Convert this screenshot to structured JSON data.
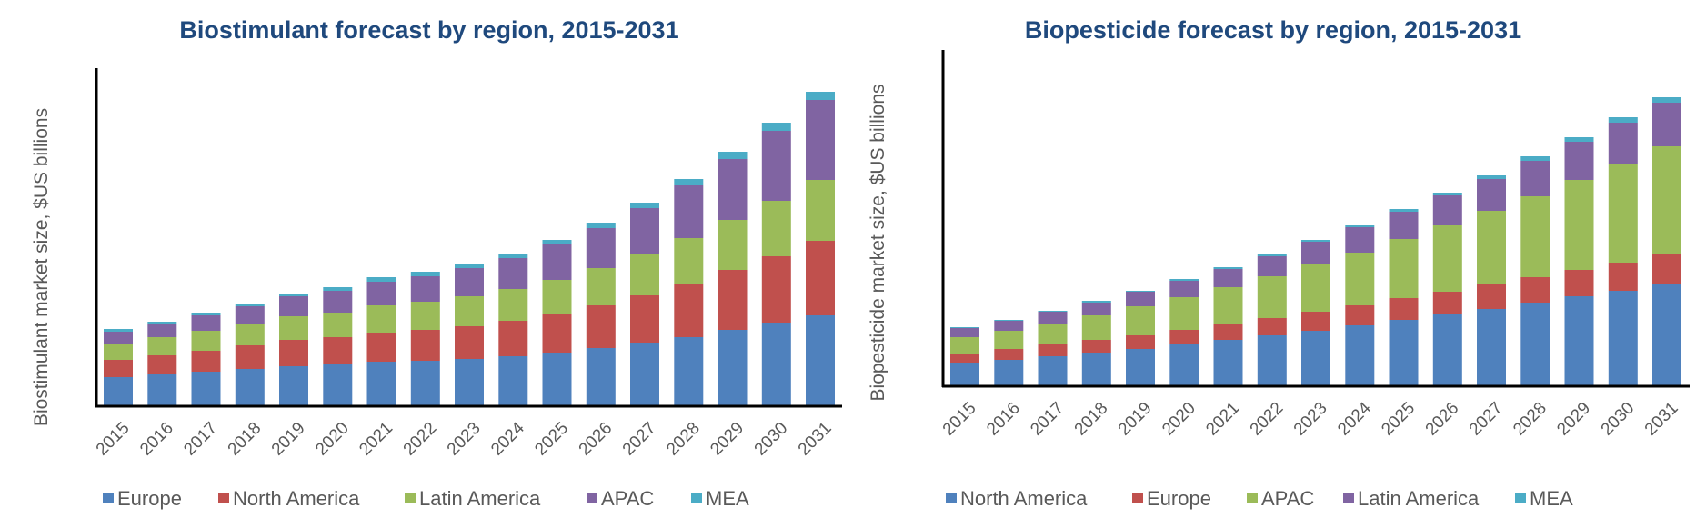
{
  "chart_data": [
    {
      "type": "bar",
      "stacked": true,
      "title": "Biostimulant forecast by region, 2015-2031",
      "xlabel": "",
      "ylabel": "Biostimulant market size, $US billions",
      "ylim": [
        0,
        37.2
      ],
      "y_ticks_shown": false,
      "grid": false,
      "legend_position": "bottom",
      "categories": [
        "2015",
        "2016",
        "2017",
        "2018",
        "2019",
        "2020",
        "2021",
        "2022",
        "2023",
        "2024",
        "2025",
        "2026",
        "2027",
        "2028",
        "2029",
        "2030",
        "2031"
      ],
      "series": [
        {
          "name": "Europe",
          "color": "#4F81BD",
          "values": [
            3.2,
            3.5,
            3.8,
            4.1,
            4.4,
            4.6,
            4.9,
            5.0,
            5.2,
            5.5,
            5.9,
            6.4,
            7.0,
            7.6,
            8.4,
            9.2,
            10.0
          ]
        },
        {
          "name": "North America",
          "color": "#C0504D",
          "values": [
            1.9,
            2.1,
            2.3,
            2.6,
            2.9,
            3.0,
            3.2,
            3.4,
            3.6,
            3.9,
            4.3,
            4.7,
            5.2,
            5.9,
            6.6,
            7.3,
            8.2
          ]
        },
        {
          "name": "Latin America",
          "color": "#9BBB59",
          "values": [
            1.8,
            2.0,
            2.2,
            2.4,
            2.6,
            2.7,
            3.0,
            3.1,
            3.3,
            3.5,
            3.7,
            4.1,
            4.5,
            5.0,
            5.5,
            6.1,
            6.7
          ]
        },
        {
          "name": "APAC",
          "color": "#8064A2",
          "values": [
            1.3,
            1.5,
            1.7,
            1.9,
            2.2,
            2.4,
            2.6,
            2.8,
            3.1,
            3.4,
            3.9,
            4.4,
            5.1,
            5.8,
            6.7,
            7.7,
            8.8
          ]
        },
        {
          "name": "MEA",
          "color": "#4BACC6",
          "values": [
            0.3,
            0.2,
            0.3,
            0.3,
            0.3,
            0.4,
            0.5,
            0.5,
            0.5,
            0.5,
            0.5,
            0.6,
            0.6,
            0.7,
            0.8,
            0.9,
            0.9
          ]
        }
      ]
    },
    {
      "type": "bar",
      "stacked": true,
      "title": "Biopesticide forecast by region, 2015-2031",
      "xlabel": "",
      "ylabel": "Biopesticide market size, $US billions",
      "ylim": [
        0,
        37.0
      ],
      "y_ticks_shown": false,
      "grid": false,
      "legend_position": "bottom",
      "categories": [
        "2015",
        "2016",
        "2017",
        "2018",
        "2019",
        "2020",
        "2021",
        "2022",
        "2023",
        "2024",
        "2025",
        "2026",
        "2027",
        "2028",
        "2029",
        "2030",
        "2031"
      ],
      "series": [
        {
          "name": "North America",
          "color": "#4F81BD",
          "values": [
            2.6,
            2.9,
            3.3,
            3.7,
            4.1,
            4.6,
            5.1,
            5.6,
            6.1,
            6.7,
            7.3,
            7.9,
            8.5,
            9.2,
            9.9,
            10.5,
            11.2
          ]
        },
        {
          "name": "Europe",
          "color": "#C0504D",
          "values": [
            1.0,
            1.2,
            1.3,
            1.4,
            1.5,
            1.6,
            1.8,
            1.9,
            2.1,
            2.2,
            2.4,
            2.5,
            2.7,
            2.8,
            2.9,
            3.1,
            3.3
          ]
        },
        {
          "name": "APAC",
          "color": "#9BBB59",
          "values": [
            1.8,
            2.0,
            2.3,
            2.7,
            3.2,
            3.6,
            4.0,
            4.6,
            5.2,
            5.8,
            6.5,
            7.3,
            8.1,
            8.9,
            9.9,
            10.9,
            11.9
          ]
        },
        {
          "name": "Latin America",
          "color": "#8064A2",
          "values": [
            1.0,
            1.1,
            1.3,
            1.4,
            1.6,
            1.8,
            2.0,
            2.2,
            2.5,
            2.8,
            3.0,
            3.3,
            3.5,
            3.9,
            4.2,
            4.5,
            4.8
          ]
        },
        {
          "name": "MEA",
          "color": "#4BACC6",
          "values": [
            0.1,
            0.1,
            0.1,
            0.2,
            0.1,
            0.2,
            0.2,
            0.3,
            0.2,
            0.2,
            0.3,
            0.3,
            0.4,
            0.5,
            0.5,
            0.6,
            0.6
          ]
        }
      ]
    }
  ]
}
